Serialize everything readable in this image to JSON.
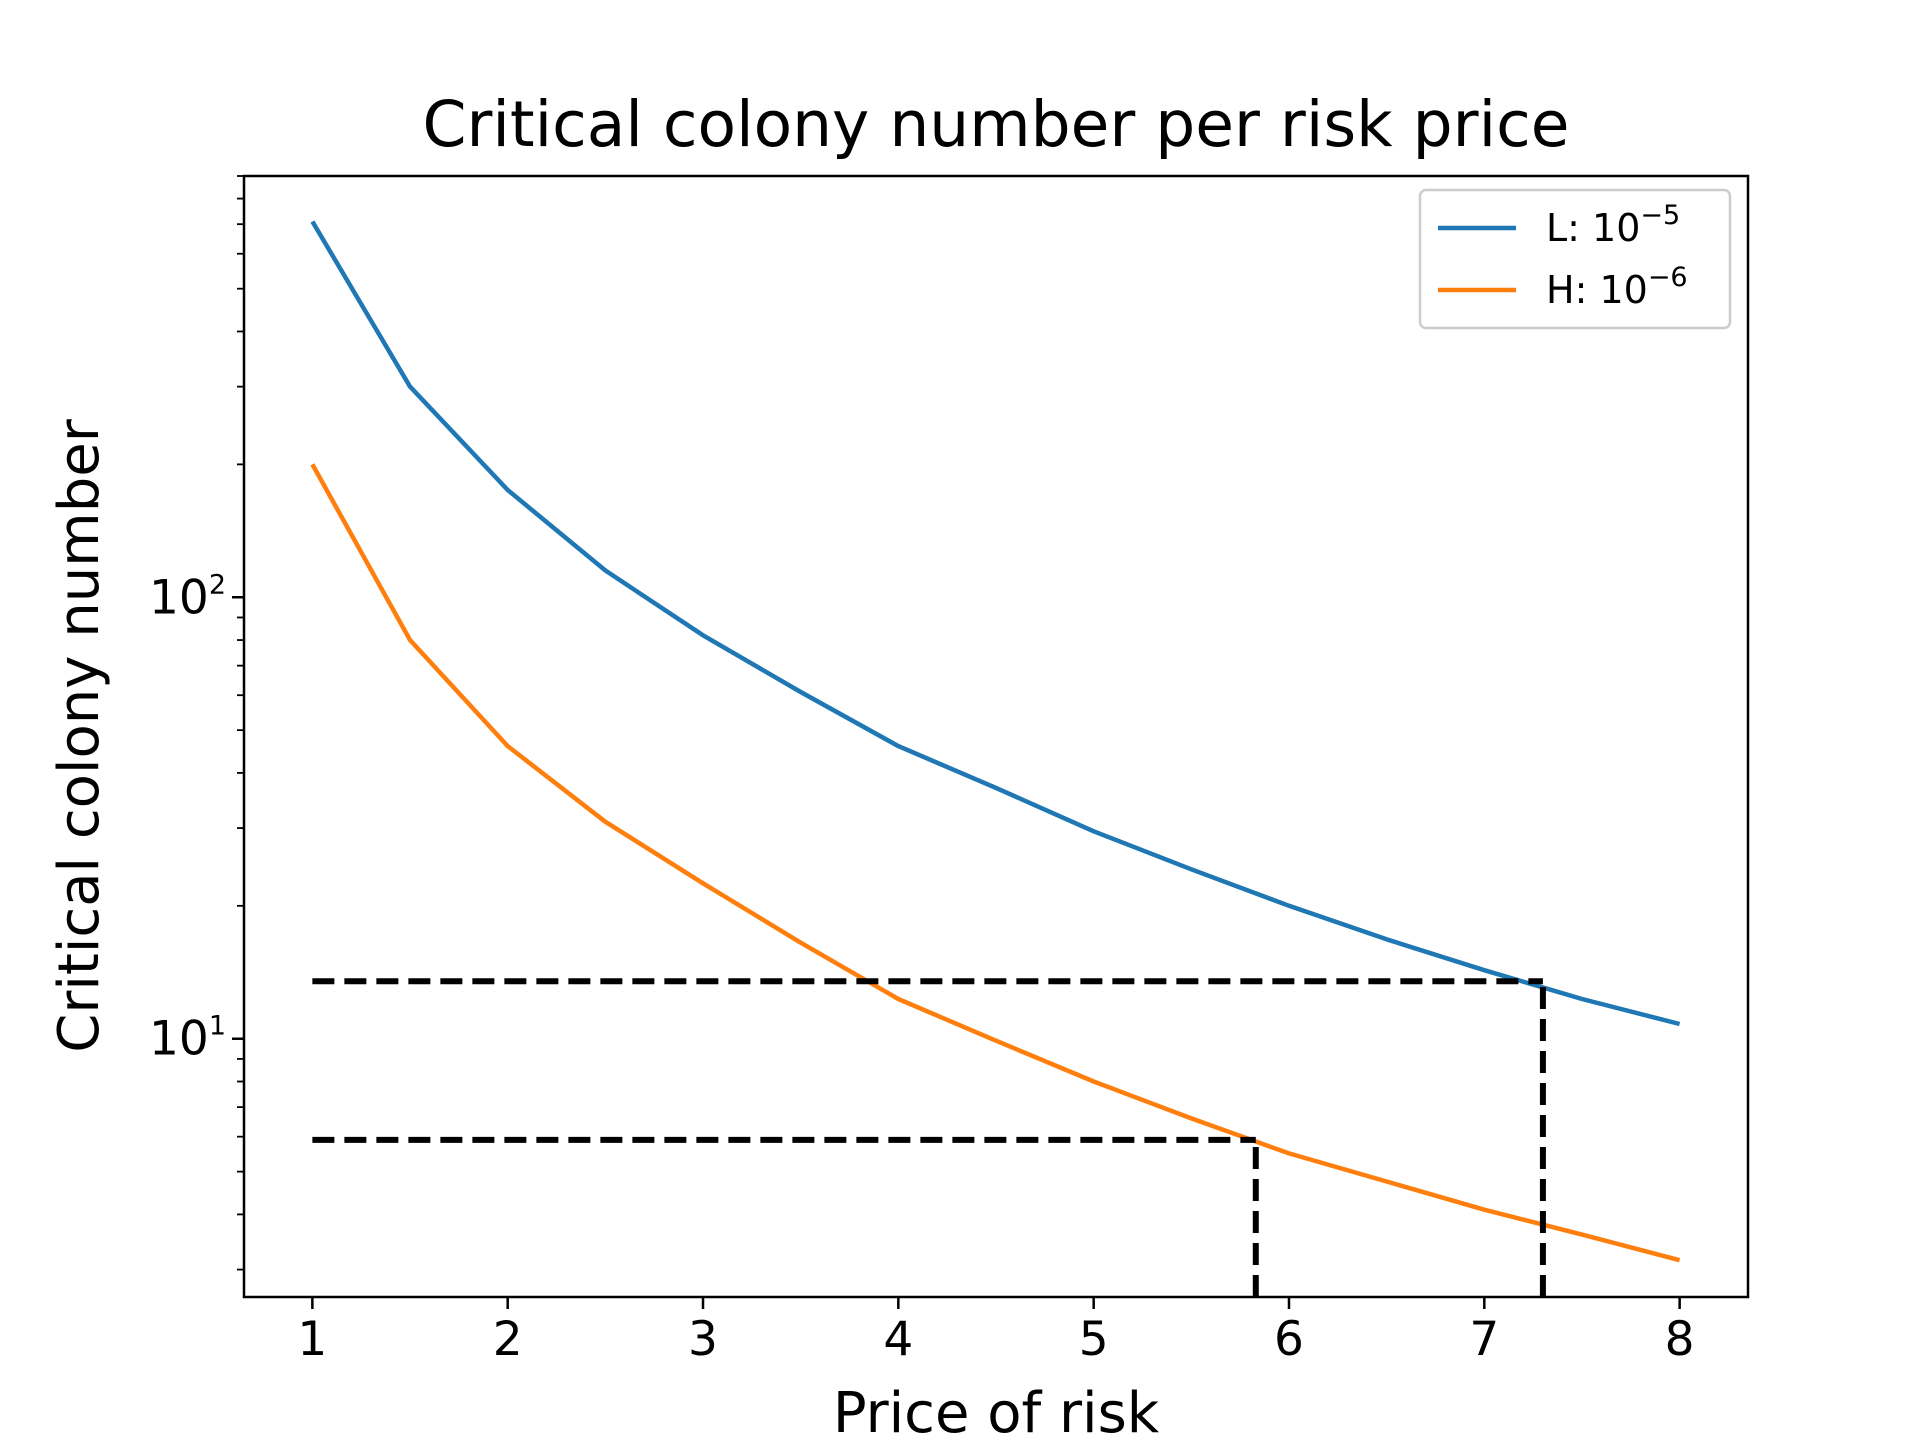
{
  "chart_data": {
    "type": "line",
    "title": "Critical colony number per risk price",
    "xlabel": "Price of risk",
    "ylabel": "Critical colony number",
    "xscale": "linear",
    "yscale": "log",
    "xlim": [
      0.65,
      8.35
    ],
    "ylim": [
      2.6,
      900
    ],
    "xticks": [
      1,
      2,
      3,
      4,
      5,
      6,
      7,
      8
    ],
    "xtick_labels": [
      "1",
      "2",
      "3",
      "4",
      "5",
      "6",
      "7",
      "8"
    ],
    "yticks": [
      {
        "value": 10,
        "base": "10",
        "exp": "1"
      },
      {
        "value": 100,
        "base": "10",
        "exp": "2"
      }
    ],
    "grid": false,
    "legend_position": "top-right",
    "series": [
      {
        "name": "L: 10",
        "name_sup": "−5",
        "color": "#1f77b4",
        "x": [
          1.0,
          1.5,
          2.0,
          2.5,
          3.0,
          3.5,
          4.0,
          4.5,
          5.0,
          5.5,
          6.0,
          6.5,
          7.0,
          7.5,
          8.0
        ],
        "y": [
          710,
          300,
          175,
          115,
          82,
          61,
          46,
          37,
          29.5,
          24.2,
          20.0,
          16.8,
          14.3,
          12.3,
          10.8
        ]
      },
      {
        "name": "H: 10",
        "name_sup": "−6",
        "color": "#ff7f0e",
        "x": [
          1.0,
          1.5,
          2.0,
          2.5,
          3.0,
          3.5,
          4.0,
          4.5,
          5.0,
          5.5,
          6.0,
          6.5,
          7.0,
          7.5,
          8.0
        ],
        "y": [
          200,
          80,
          46,
          31,
          22.5,
          16.5,
          12.3,
          9.9,
          8.0,
          6.6,
          5.5,
          4.75,
          4.1,
          3.6,
          3.15
        ]
      }
    ],
    "annotations": [
      {
        "type": "dashed-hline",
        "y": 13.5,
        "x_from": 1.0,
        "x_to": 7.3,
        "color": "#000000"
      },
      {
        "type": "dashed-vline",
        "x": 7.3,
        "y_from": 2.6,
        "y_to": 13.5,
        "color": "#000000"
      },
      {
        "type": "dashed-hline",
        "y": 5.9,
        "x_from": 1.0,
        "x_to": 5.83,
        "color": "#000000"
      },
      {
        "type": "dashed-vline",
        "x": 5.83,
        "y_from": 2.6,
        "y_to": 5.9,
        "color": "#000000"
      }
    ]
  }
}
